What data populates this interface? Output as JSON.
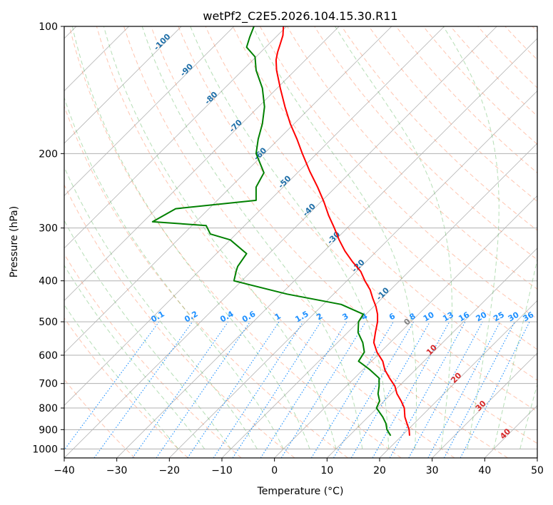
{
  "chart_data": {
    "type": "line",
    "title": "wetPf2_C2E5.2026.104.15.30.R11",
    "xlabel": "Temperature (°C)",
    "ylabel": "Pressure (hPa)",
    "xlim": [
      -40,
      50
    ],
    "ylim": [
      1050,
      100
    ],
    "y_scale": "log",
    "x_ticks": [
      "−40",
      "−30",
      "−20",
      "−10",
      "0",
      "10",
      "20",
      "30",
      "40",
      "50"
    ],
    "x_tick_values": [
      -40,
      -30,
      -20,
      -10,
      0,
      10,
      20,
      30,
      40,
      50
    ],
    "y_ticks": [
      "100",
      "200",
      "300",
      "400",
      "500",
      "600",
      "700",
      "800",
      "900",
      "1000"
    ],
    "y_tick_values": [
      100,
      200,
      300,
      400,
      500,
      600,
      700,
      800,
      900,
      1000
    ],
    "grid": true,
    "dry_adiabat_labels": [
      "-100",
      "-90",
      "-80",
      "-70",
      "-60",
      "-50",
      "-40",
      "-30",
      "-20",
      "-10",
      "0",
      "10",
      "20",
      "30",
      "40"
    ],
    "mixing_ratio_labels": [
      "0.1",
      "0.2",
      "0.4",
      "0.6",
      "1",
      "1.5",
      "2",
      "3",
      "4",
      "6",
      "8",
      "10",
      "13",
      "16",
      "20",
      "25",
      "30",
      "36"
    ],
    "colors": {
      "temperature": "#ff0000",
      "dewpoint": "#008000",
      "dry_adiabat": "#ff7f50",
      "moist_adiabat": "#2ca02c",
      "mixing_ratio": "#1e90ff",
      "isotherm": "#808080",
      "dry_adiabat_label": "#1f6fa8",
      "zero_label": "#808080",
      "warm_label": "#d62728"
    },
    "series": [
      {
        "name": "",
        "role": "temperature",
        "x_display": [
          25.7,
          25.6,
          25.2,
          24.8,
          24.7,
          24.1,
          23.3,
          22.9,
          21.9,
          21.0,
          20.6,
          19.5,
          18.9,
          19.2,
          19.6,
          19.6,
          19.3,
          18.7,
          18.2,
          17.2,
          16.4,
          14.8,
          13.4,
          12.3,
          11.4,
          10.3,
          9.4,
          8.2,
          6.7,
          5.3,
          4.3,
          3.0,
          2.0,
          1.1,
          0.4,
          0.3,
          0.6,
          1.1,
          1.6,
          1.7
        ],
        "p": [
          930,
          900,
          870,
          840,
          800,
          770,
          740,
          710,
          680,
          650,
          620,
          590,
          560,
          530,
          500,
          480,
          460,
          440,
          420,
          400,
          380,
          360,
          340,
          320,
          300,
          280,
          260,
          240,
          220,
          200,
          185,
          170,
          155,
          140,
          127,
          120,
          115,
          110,
          105,
          100
        ]
      },
      {
        "name": "",
        "role": "dewpoint",
        "x_display": [
          22.1,
          21.4,
          21.2,
          20.6,
          19.4,
          20.0,
          19.7,
          19.9,
          19.9,
          18.2,
          16.0,
          17.1,
          16.8,
          15.9,
          16.0,
          16.9,
          12.7,
          2.4,
          -7.7,
          -7.3,
          -7.0,
          -5.3,
          -8.4,
          -12.2,
          -13.0,
          -23.2,
          -18.8,
          -3.5,
          -3.5,
          -2.0,
          -3.5,
          -3.1,
          -2.3,
          -1.9,
          -2.3,
          -3.5,
          -3.7,
          -5.3,
          -4.7,
          -3.9
        ],
        "p": [
          930,
          900,
          870,
          840,
          800,
          770,
          740,
          710,
          680,
          650,
          620,
          590,
          560,
          530,
          500,
          480,
          455,
          430,
          400,
          380,
          370,
          345,
          320,
          310,
          296,
          290,
          270,
          258,
          240,
          222,
          200,
          185,
          170,
          155,
          140,
          127,
          118,
          112,
          106,
          100
        ]
      }
    ]
  }
}
